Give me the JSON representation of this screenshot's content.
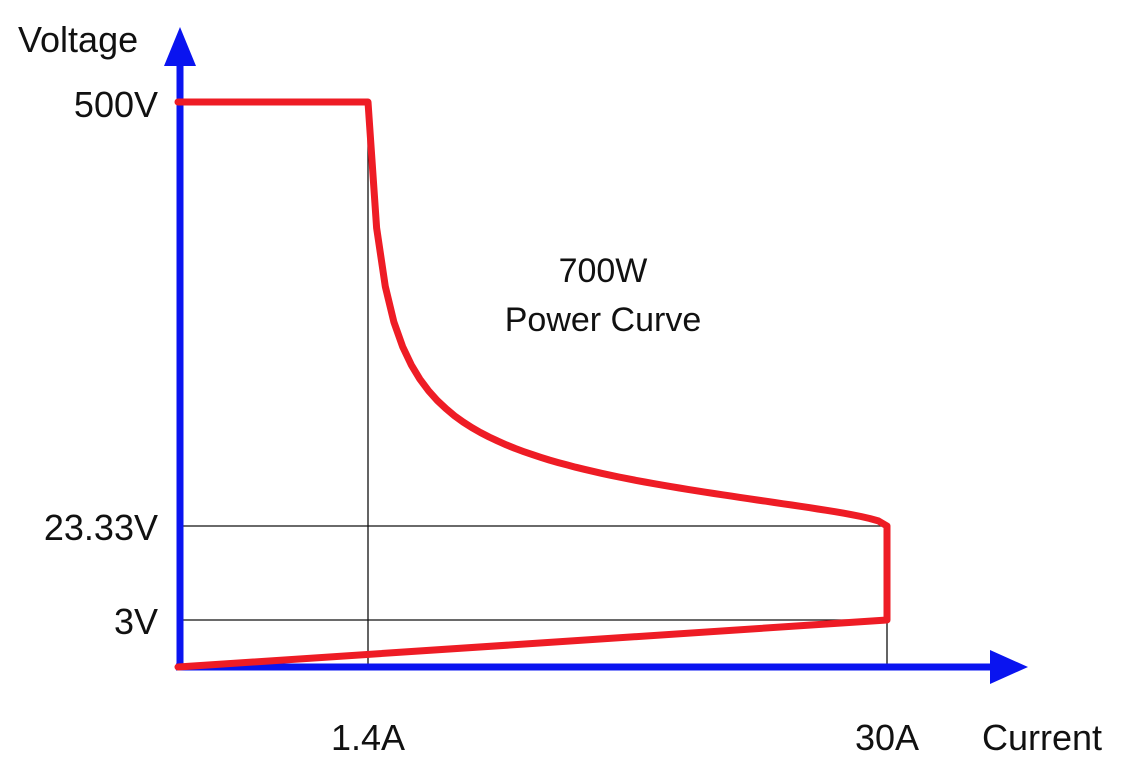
{
  "chart_data": {
    "type": "line",
    "title": "",
    "xlabel": "Current",
    "ylabel": "Voltage",
    "x_ticks": [
      "1.4A",
      "30A"
    ],
    "y_ticks": [
      "500V",
      "23.33V",
      "3V"
    ],
    "series": [
      {
        "name": "",
        "color": "#ee1c25",
        "segments": [
          {
            "kind": "line",
            "from": [
              0,
              500
            ],
            "to": [
              1.4,
              500
            ]
          },
          {
            "kind": "hyperbola",
            "power_w": 700,
            "from_x": 1.4,
            "to_x": 30
          },
          {
            "kind": "line",
            "from": [
              30,
              23.33
            ],
            "to": [
              30,
              3
            ]
          },
          {
            "kind": "line",
            "from": [
              30,
              3
            ],
            "to": [
              0,
              0
            ]
          }
        ]
      }
    ],
    "annotation": {
      "line1": "700W",
      "line2": "Power Curve"
    },
    "axis_color": "#0a14f0",
    "grid": false
  }
}
